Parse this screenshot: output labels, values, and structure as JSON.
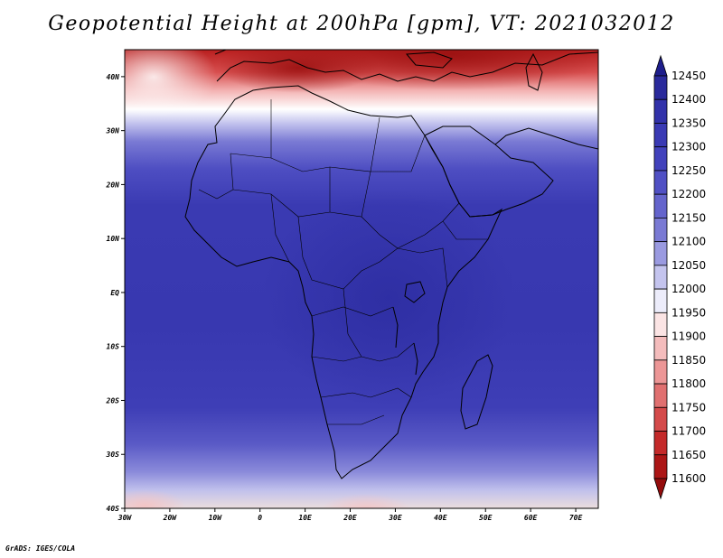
{
  "title": "Geopotential Height at 200hPa [gpm], VT: 2021032012",
  "credit": "GrADS: IGES/COLA",
  "map": {
    "lon_range": [
      -30,
      75
    ],
    "lat_range": [
      -40,
      45
    ],
    "lon_ticks": [
      {
        "v": -30,
        "label": "30W"
      },
      {
        "v": -20,
        "label": "20W"
      },
      {
        "v": -10,
        "label": "10W"
      },
      {
        "v": 0,
        "label": "0"
      },
      {
        "v": 10,
        "label": "10E"
      },
      {
        "v": 20,
        "label": "20E"
      },
      {
        "v": 30,
        "label": "30E"
      },
      {
        "v": 40,
        "label": "40E"
      },
      {
        "v": 50,
        "label": "50E"
      },
      {
        "v": 60,
        "label": "60E"
      },
      {
        "v": 70,
        "label": "70E"
      }
    ],
    "lat_ticks": [
      {
        "v": 40,
        "label": "40N"
      },
      {
        "v": 30,
        "label": "30N"
      },
      {
        "v": 20,
        "label": "20N"
      },
      {
        "v": 10,
        "label": "10N"
      },
      {
        "v": 0,
        "label": "EQ"
      },
      {
        "v": -10,
        "label": "10S"
      },
      {
        "v": -20,
        "label": "20S"
      },
      {
        "v": -30,
        "label": "30S"
      },
      {
        "v": -40,
        "label": "40S"
      }
    ]
  },
  "colorbar": {
    "levels": [
      "12450",
      "12400",
      "12350",
      "12300",
      "12250",
      "12200",
      "12150",
      "12100",
      "12050",
      "12000",
      "11950",
      "11900",
      "11850",
      "11800",
      "11750",
      "11700",
      "11650",
      "11600"
    ],
    "colors": [
      "#1e1e8c",
      "#2a2a9c",
      "#3232aa",
      "#3a3ab4",
      "#4242bc",
      "#5050c4",
      "#6464cc",
      "#7a7ad4",
      "#9a9ae0",
      "#c4c4ee",
      "#ececfa",
      "#fbe4e4",
      "#f4bcbc",
      "#ec9696",
      "#e07070",
      "#d44a4a",
      "#c42a2a",
      "#ac1616",
      "#940c0c"
    ]
  }
}
